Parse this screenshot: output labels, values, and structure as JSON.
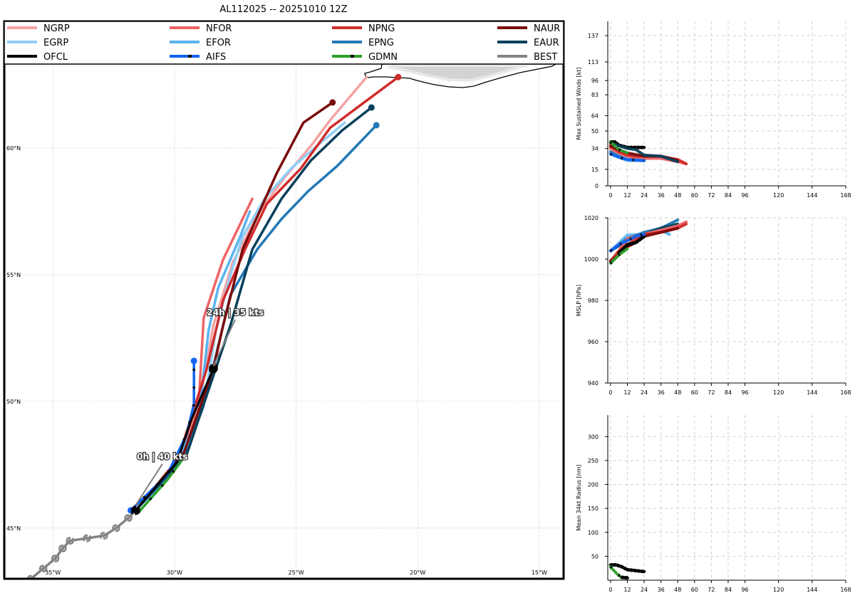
{
  "title": "AL112025 -- 20251010 12Z",
  "colors": {
    "NGRP": "#f4a3a3",
    "EGRP": "#91cdf7",
    "OFCL": "#000000",
    "NFOR": "#ee6464",
    "EFOR": "#5bb3f1",
    "AIFS": "#1063f0",
    "NPNG": "#d02b2b",
    "EPNG": "#2378b4",
    "GDMN": "#2ca02c",
    "NAUR": "#7a0a0a",
    "EAUR": "#06405a",
    "BEST": "#848484"
  },
  "legend": [
    {
      "key": "NGRP",
      "label": "NGRP",
      "style": "solid"
    },
    {
      "key": "NFOR",
      "label": "NFOR",
      "style": "solid"
    },
    {
      "key": "NPNG",
      "label": "NPNG",
      "style": "solid"
    },
    {
      "key": "NAUR",
      "label": "NAUR",
      "style": "solid"
    },
    {
      "key": "EGRP",
      "label": "EGRP",
      "style": "solid"
    },
    {
      "key": "EFOR",
      "label": "EFOR",
      "style": "solid"
    },
    {
      "key": "EPNG",
      "label": "EPNG",
      "style": "solid"
    },
    {
      "key": "EAUR",
      "label": "EAUR",
      "style": "solid"
    },
    {
      "key": "OFCL",
      "label": "OFCL",
      "style": "solid"
    },
    {
      "key": "AIFS",
      "label": "AIFS",
      "style": "dash"
    },
    {
      "key": "GDMN",
      "label": "GDMN",
      "style": "dash"
    },
    {
      "key": "BEST",
      "label": "BEST",
      "style": "solid"
    }
  ],
  "chart_data": [
    {
      "type": "map-track",
      "name": "track-map",
      "xlim": [
        -37,
        -14
      ],
      "ylim": [
        43,
        65
      ],
      "lon_ticks": [
        -35,
        -30,
        -25,
        -20,
        -15
      ],
      "lon_labels": [
        "35°W",
        "30°W",
        "25°W",
        "20°W",
        "15°W"
      ],
      "lat_ticks": [
        45,
        50,
        55,
        60
      ],
      "lat_labels": [
        "45°N",
        "50°N",
        "55°N",
        "60°N"
      ],
      "annotations": [
        {
          "text": "0h | 40 kts",
          "lon": -31.6,
          "lat": 45.9,
          "tlon": -30.5,
          "tlat": 47.7
        },
        {
          "text": "24h | 35 kts",
          "lon": -28.4,
          "lat": 51.4,
          "tlon": -27.5,
          "tlat": 53.4
        }
      ],
      "tracks": [
        {
          "key": "BEST",
          "points": [
            [
              -36.5,
              42.6
            ],
            [
              -35.9,
              43.0
            ],
            [
              -35.4,
              43.4
            ],
            [
              -34.9,
              43.8
            ],
            [
              -34.6,
              44.2
            ],
            [
              -34.3,
              44.5
            ],
            [
              -33.6,
              44.6
            ],
            [
              -32.9,
              44.7
            ],
            [
              -32.4,
              45.0
            ],
            [
              -31.9,
              45.4
            ],
            [
              -31.6,
              45.7
            ]
          ]
        },
        {
          "key": "NGRP",
          "points": [
            [
              -31.5,
              45.8
            ],
            [
              -29.8,
              47.8
            ],
            [
              -29.0,
              49.8
            ],
            [
              -28.4,
              53.0
            ],
            [
              -27.6,
              55.5
            ],
            [
              -26.5,
              57.5
            ],
            [
              -25.5,
              58.8
            ],
            [
              -24.3,
              60.2
            ],
            [
              -23.6,
              61.1
            ],
            [
              -22.1,
              62.8
            ]
          ],
          "end": false
        },
        {
          "key": "EGRP",
          "points": [
            [
              -31.5,
              45.8
            ],
            [
              -29.6,
              47.9
            ],
            [
              -28.8,
              49.8
            ],
            [
              -28.3,
              52.8
            ],
            [
              -27.7,
              55.0
            ],
            [
              -27.2,
              56.5
            ],
            [
              -26.3,
              58.0
            ],
            [
              -25.2,
              59.2
            ],
            [
              -24.0,
              60.2
            ],
            [
              -23.0,
              61.0
            ]
          ],
          "end": false
        },
        {
          "key": "NFOR",
          "points": [
            [
              -31.5,
              45.8
            ],
            [
              -29.8,
              47.8
            ],
            [
              -29.0,
              50.0
            ],
            [
              -28.8,
              53.3
            ],
            [
              -28.0,
              55.6
            ],
            [
              -26.8,
              58.0
            ]
          ],
          "end": false
        },
        {
          "key": "EFOR",
          "points": [
            [
              -31.5,
              45.8
            ],
            [
              -30.1,
              47.2
            ],
            [
              -29.0,
              49.4
            ],
            [
              -28.6,
              52.8
            ],
            [
              -28.2,
              54.5
            ],
            [
              -27.3,
              56.5
            ],
            [
              -26.9,
              57.5
            ]
          ],
          "end": false
        },
        {
          "key": "NPNG",
          "points": [
            [
              -31.5,
              45.8
            ],
            [
              -29.9,
              47.6
            ],
            [
              -28.7,
              51.2
            ],
            [
              -28.0,
              54.0
            ],
            [
              -27.1,
              56.0
            ],
            [
              -26.2,
              57.8
            ],
            [
              -24.8,
              59.2
            ],
            [
              -23.6,
              60.8
            ],
            [
              -20.8,
              62.8
            ]
          ],
          "end": true
        },
        {
          "key": "EPNG",
          "points": [
            [
              -31.5,
              45.8
            ],
            [
              -29.4,
              48.2
            ],
            [
              -28.5,
              51.0
            ],
            [
              -27.7,
              54.2
            ],
            [
              -26.6,
              56.0
            ],
            [
              -25.6,
              57.2
            ],
            [
              -24.5,
              58.3
            ],
            [
              -23.3,
              59.3
            ],
            [
              -21.7,
              60.9
            ]
          ],
          "end": true
        },
        {
          "key": "NAUR",
          "points": [
            [
              -31.5,
              45.8
            ],
            [
              -29.6,
              48.0
            ],
            [
              -28.4,
              51.3
            ],
            [
              -28.0,
              53.0
            ],
            [
              -27.2,
              56.0
            ],
            [
              -25.8,
              59.0
            ],
            [
              -24.7,
              61.0
            ],
            [
              -23.5,
              61.8
            ]
          ],
          "end": true
        },
        {
          "key": "EAUR",
          "points": [
            [
              -31.5,
              45.8
            ],
            [
              -29.5,
              47.9
            ],
            [
              -28.3,
              51.3
            ],
            [
              -27.7,
              53.0
            ],
            [
              -26.8,
              56.0
            ],
            [
              -25.6,
              58.0
            ],
            [
              -24.4,
              59.5
            ],
            [
              -23.1,
              60.7
            ],
            [
              -21.9,
              61.6
            ]
          ],
          "end": true
        },
        {
          "key": "GDMN",
          "points": [
            [
              -31.5,
              45.6
            ],
            [
              -30.3,
              46.9
            ],
            [
              -29.6,
              47.8
            ]
          ],
          "end": false
        },
        {
          "key": "AIFS",
          "points": [
            [
              -31.8,
              45.7
            ],
            [
              -30.3,
              47.1
            ],
            [
              -29.5,
              48.7
            ],
            [
              -29.2,
              49.9
            ],
            [
              -29.2,
              51.6
            ]
          ],
          "end": true,
          "start": true
        },
        {
          "key": "OFCL",
          "points": [
            [
              -31.6,
              45.7
            ],
            [
              -29.9,
              47.6
            ],
            [
              -29.3,
              49.3
            ],
            [
              -28.4,
              51.3
            ]
          ],
          "end": false
        }
      ]
    },
    {
      "type": "line",
      "name": "intensity-panel",
      "ylabel": "Max Sustained Winds [kt]",
      "xlim": [
        -2,
        168
      ],
      "ylim": [
        0,
        150
      ],
      "xticks": [
        0,
        12,
        24,
        36,
        48,
        60,
        72,
        84,
        96,
        120,
        144,
        168
      ],
      "yticks": [
        0,
        15,
        34,
        50,
        64,
        83,
        96,
        113,
        137
      ],
      "series": [
        {
          "key": "OFCL",
          "x": [
            0,
            3,
            6,
            12,
            18,
            24
          ],
          "y": [
            40,
            40,
            37,
            35,
            35,
            35
          ]
        },
        {
          "key": "NGRP",
          "x": [
            0,
            6,
            12,
            18,
            24,
            36,
            48,
            54
          ],
          "y": [
            35,
            30,
            28,
            27,
            27,
            26,
            23,
            20
          ]
        },
        {
          "key": "NFOR",
          "x": [
            0,
            6,
            12,
            18,
            24,
            36,
            48,
            54
          ],
          "y": [
            34,
            30,
            27,
            26,
            25,
            25,
            22,
            20
          ]
        },
        {
          "key": "NPNG",
          "x": [
            0,
            6,
            12,
            18,
            24,
            36,
            48,
            54
          ],
          "y": [
            37,
            31,
            28,
            27,
            27,
            27,
            24,
            20
          ]
        },
        {
          "key": "NAUR",
          "x": [
            0,
            6,
            12,
            24,
            36,
            48
          ],
          "y": [
            36,
            33,
            30,
            27,
            27,
            23
          ]
        },
        {
          "key": "EGRP",
          "x": [
            0,
            6,
            12,
            24
          ],
          "y": [
            30,
            26,
            24,
            23
          ]
        },
        {
          "key": "EFOR",
          "x": [
            0,
            6,
            12,
            24
          ],
          "y": [
            29,
            26,
            23,
            23
          ]
        },
        {
          "key": "EPNG",
          "x": [
            0,
            6,
            12,
            24
          ],
          "y": [
            31,
            27,
            24,
            23
          ]
        },
        {
          "key": "EAUR",
          "x": [
            0,
            12,
            18,
            24,
            36,
            48
          ],
          "y": [
            39,
            34,
            33,
            28,
            27,
            22
          ]
        },
        {
          "key": "GDMN",
          "x": [
            0,
            6,
            12
          ],
          "y": [
            40,
            33,
            30
          ]
        },
        {
          "key": "AIFS",
          "x": [
            0,
            6,
            12,
            24
          ],
          "y": [
            29,
            26,
            24,
            23
          ]
        }
      ]
    },
    {
      "type": "line",
      "name": "pressure-panel",
      "ylabel": "MSLP [hPa]",
      "xlim": [
        -2,
        168
      ],
      "ylim": [
        940,
        1020
      ],
      "xticks": [
        0,
        12,
        24,
        36,
        48,
        60,
        72,
        84,
        96,
        120,
        144,
        168
      ],
      "yticks": [
        940,
        960,
        980,
        1000,
        1020
      ],
      "series": [
        {
          "key": "EGRP",
          "x": [
            0,
            12,
            24,
            36,
            42
          ],
          "y": [
            1004,
            1012,
            1012,
            1014,
            1012
          ]
        },
        {
          "key": "EFOR",
          "x": [
            0,
            12,
            24,
            36,
            42
          ],
          "y": [
            1004,
            1011,
            1012,
            1014,
            1012
          ]
        },
        {
          "key": "EPNG",
          "x": [
            0,
            12,
            24,
            36,
            48
          ],
          "y": [
            1004,
            1010,
            1013,
            1015,
            1019
          ]
        },
        {
          "key": "EAUR",
          "x": [
            0,
            12,
            24,
            36,
            48
          ],
          "y": [
            1004,
            1009,
            1012,
            1015,
            1017
          ]
        },
        {
          "key": "NGRP",
          "x": [
            0,
            6,
            12,
            24,
            36,
            48,
            54
          ],
          "y": [
            999,
            1003,
            1009,
            1012,
            1014,
            1016,
            1018
          ]
        },
        {
          "key": "NFOR",
          "x": [
            0,
            6,
            12,
            24,
            36,
            48,
            54
          ],
          "y": [
            999,
            1004,
            1010,
            1012,
            1014,
            1016,
            1018
          ]
        },
        {
          "key": "NPNG",
          "x": [
            0,
            6,
            12,
            24,
            36,
            48,
            54
          ],
          "y": [
            999,
            1004,
            1007,
            1012,
            1013,
            1015,
            1017
          ]
        },
        {
          "key": "NAUR",
          "x": [
            0,
            6,
            12,
            18,
            24,
            36,
            48
          ],
          "y": [
            999,
            1002,
            1006,
            1008,
            1011,
            1013,
            1015
          ]
        },
        {
          "key": "OFCL",
          "x": [
            6,
            12,
            18,
            24
          ],
          "y": [
            1003,
            1007,
            1008,
            1011
          ]
        },
        {
          "key": "GDMN",
          "x": [
            0,
            6,
            12
          ],
          "y": [
            998,
            1002,
            1005
          ]
        },
        {
          "key": "AIFS",
          "x": [
            0,
            6,
            12,
            18,
            24
          ],
          "y": [
            1004,
            1007,
            1009,
            1011,
            1012
          ]
        }
      ]
    },
    {
      "type": "line",
      "name": "radius-panel",
      "ylabel": "Mean 34kt Radius [nm]",
      "xlim": [
        -2,
        168
      ],
      "ylim": [
        0,
        345
      ],
      "xticks": [
        0,
        12,
        24,
        36,
        48,
        60,
        72,
        84,
        96,
        120,
        144,
        168
      ],
      "yticks": [
        50,
        100,
        150,
        200,
        250,
        300
      ],
      "series": [
        {
          "key": "OFCL",
          "x": [
            0,
            4,
            8,
            12,
            18,
            24
          ],
          "y": [
            32,
            32,
            28,
            22,
            20,
            18
          ]
        },
        {
          "key": "GDMN",
          "x": [
            0,
            4,
            8,
            12
          ],
          "y": [
            28,
            15,
            5,
            4
          ]
        },
        {
          "key": "OFCL",
          "x": [
            8,
            12
          ],
          "y": [
            6,
            5
          ]
        }
      ]
    }
  ]
}
